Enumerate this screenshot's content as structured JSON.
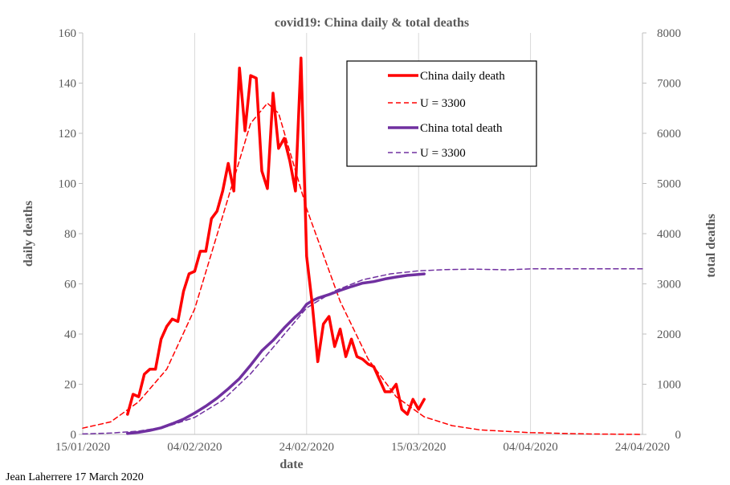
{
  "chart_data": {
    "type": "line",
    "title": "covid19: China daily & total deaths",
    "xlabel": "date",
    "ylabel_left": "daily deaths",
    "ylabel_right": "total deaths",
    "credit": "Jean Laherrere 17 March 2020",
    "x_range": [
      "2020-01-15",
      "2020-04-24"
    ],
    "x_tick_labels": [
      "15/01/2020",
      "04/02/2020",
      "24/02/2020",
      "15/03/2020",
      "04/04/2020",
      "24/04/2020"
    ],
    "x_ticks": [
      "2020-01-15",
      "2020-02-04",
      "2020-02-24",
      "2020-03-15",
      "2020-04-04",
      "2020-04-24"
    ],
    "ylim_left": [
      0,
      160
    ],
    "y_ticks_left": [
      0,
      20,
      40,
      60,
      80,
      100,
      120,
      140,
      160
    ],
    "ylim_right": [
      0,
      8000
    ],
    "y_ticks_right": [
      0,
      1000,
      2000,
      3000,
      4000,
      5000,
      6000,
      7000,
      8000
    ],
    "grid": "vertical",
    "legend_position": "top-right",
    "colors": {
      "daily": "#ff0000",
      "total": "#7030a0",
      "axis": "#bfbfbf",
      "grid": "#d9d9d9"
    },
    "series": [
      {
        "name": "China daily death",
        "axis": "left",
        "style": "solid",
        "color": "#ff0000",
        "points": [
          [
            "2020-01-23",
            8
          ],
          [
            "2020-01-24",
            16
          ],
          [
            "2020-01-25",
            15
          ],
          [
            "2020-01-26",
            24
          ],
          [
            "2020-01-27",
            26
          ],
          [
            "2020-01-28",
            26
          ],
          [
            "2020-01-29",
            38
          ],
          [
            "2020-01-30",
            43
          ],
          [
            "2020-01-31",
            46
          ],
          [
            "2020-02-01",
            45
          ],
          [
            "2020-02-02",
            57
          ],
          [
            "2020-02-03",
            64
          ],
          [
            "2020-02-04",
            65
          ],
          [
            "2020-02-05",
            73
          ],
          [
            "2020-02-06",
            73
          ],
          [
            "2020-02-07",
            86
          ],
          [
            "2020-02-08",
            89
          ],
          [
            "2020-02-09",
            97
          ],
          [
            "2020-02-10",
            108
          ],
          [
            "2020-02-11",
            97
          ],
          [
            "2020-02-12",
            146
          ],
          [
            "2020-02-13",
            121
          ],
          [
            "2020-02-14",
            143
          ],
          [
            "2020-02-15",
            142
          ],
          [
            "2020-02-16",
            105
          ],
          [
            "2020-02-17",
            98
          ],
          [
            "2020-02-18",
            136
          ],
          [
            "2020-02-19",
            114
          ],
          [
            "2020-02-20",
            118
          ],
          [
            "2020-02-21",
            109
          ],
          [
            "2020-02-22",
            97
          ],
          [
            "2020-02-23",
            150
          ],
          [
            "2020-02-24",
            71
          ],
          [
            "2020-02-25",
            52
          ],
          [
            "2020-02-26",
            29
          ],
          [
            "2020-02-27",
            44
          ],
          [
            "2020-02-28",
            47
          ],
          [
            "2020-02-29",
            35
          ],
          [
            "2020-03-01",
            42
          ],
          [
            "2020-03-02",
            31
          ],
          [
            "2020-03-03",
            38
          ],
          [
            "2020-03-04",
            31
          ],
          [
            "2020-03-05",
            30
          ],
          [
            "2020-03-06",
            28
          ],
          [
            "2020-03-07",
            27
          ],
          [
            "2020-03-08",
            22
          ],
          [
            "2020-03-09",
            17
          ],
          [
            "2020-03-10",
            17
          ],
          [
            "2020-03-11",
            20
          ],
          [
            "2020-03-12",
            10
          ],
          [
            "2020-03-13",
            8
          ],
          [
            "2020-03-14",
            14
          ],
          [
            "2020-03-15",
            10
          ],
          [
            "2020-03-16",
            14
          ]
        ]
      },
      {
        "name": "U = 3300",
        "axis": "left",
        "style": "dashed",
        "color": "#ff0000",
        "points": [
          [
            "2020-01-15",
            2.5
          ],
          [
            "2020-01-20",
            5
          ],
          [
            "2020-01-25",
            13
          ],
          [
            "2020-01-30",
            26
          ],
          [
            "2020-02-04",
            50
          ],
          [
            "2020-02-09",
            87
          ],
          [
            "2020-02-14",
            124
          ],
          [
            "2020-02-17",
            132
          ],
          [
            "2020-02-19",
            128
          ],
          [
            "2020-02-24",
            90
          ],
          [
            "2020-03-01",
            53
          ],
          [
            "2020-03-06",
            30
          ],
          [
            "2020-03-11",
            15
          ],
          [
            "2020-03-16",
            7
          ],
          [
            "2020-03-21",
            3.5
          ],
          [
            "2020-03-26",
            1.8
          ],
          [
            "2020-04-04",
            0.7
          ],
          [
            "2020-04-14",
            0.2
          ],
          [
            "2020-04-24",
            0
          ]
        ]
      },
      {
        "name": "China total death",
        "axis": "right",
        "style": "solid",
        "color": "#7030a0",
        "points": [
          [
            "2020-01-23",
            18
          ],
          [
            "2020-01-25",
            41
          ],
          [
            "2020-01-27",
            80
          ],
          [
            "2020-01-29",
            132
          ],
          [
            "2020-01-31",
            213
          ],
          [
            "2020-02-02",
            304
          ],
          [
            "2020-02-04",
            426
          ],
          [
            "2020-02-06",
            564
          ],
          [
            "2020-02-08",
            723
          ],
          [
            "2020-02-10",
            909
          ],
          [
            "2020-02-12",
            1114
          ],
          [
            "2020-02-14",
            1381
          ],
          [
            "2020-02-16",
            1666
          ],
          [
            "2020-02-18",
            1873
          ],
          [
            "2020-02-20",
            2121
          ],
          [
            "2020-02-22",
            2346
          ],
          [
            "2020-02-23",
            2443
          ],
          [
            "2020-02-24",
            2593
          ],
          [
            "2020-02-25",
            2663
          ],
          [
            "2020-02-26",
            2715
          ],
          [
            "2020-02-28",
            2788
          ],
          [
            "2020-03-01",
            2870
          ],
          [
            "2020-03-03",
            2946
          ],
          [
            "2020-03-05",
            3015
          ],
          [
            "2020-03-07",
            3045
          ],
          [
            "2020-03-09",
            3097
          ],
          [
            "2020-03-11",
            3136
          ],
          [
            "2020-03-13",
            3169
          ],
          [
            "2020-03-15",
            3189
          ],
          [
            "2020-03-16",
            3199
          ]
        ]
      },
      {
        "name": "U = 3300",
        "axis": "right",
        "style": "dashed",
        "color": "#7030a0",
        "points": [
          [
            "2020-01-15",
            9
          ],
          [
            "2020-01-20",
            27
          ],
          [
            "2020-01-25",
            66
          ],
          [
            "2020-01-30",
            156
          ],
          [
            "2020-02-04",
            340
          ],
          [
            "2020-02-09",
            680
          ],
          [
            "2020-02-14",
            1210
          ],
          [
            "2020-02-19",
            1860
          ],
          [
            "2020-02-24",
            2520
          ],
          [
            "2020-02-29",
            2860
          ],
          [
            "2020-03-05",
            3080
          ],
          [
            "2020-03-10",
            3200
          ],
          [
            "2020-03-15",
            3260
          ],
          [
            "2020-03-20",
            3285
          ],
          [
            "2020-03-25",
            3293
          ],
          [
            "2020-03-31",
            3280
          ],
          [
            "2020-04-04",
            3300
          ],
          [
            "2020-04-24",
            3300
          ]
        ]
      }
    ],
    "legend": [
      {
        "label": "China daily death",
        "series": 0
      },
      {
        "label": "U = 3300",
        "series": 1
      },
      {
        "label": "China total death",
        "series": 2
      },
      {
        "label": "U = 3300",
        "series": 3
      }
    ]
  }
}
